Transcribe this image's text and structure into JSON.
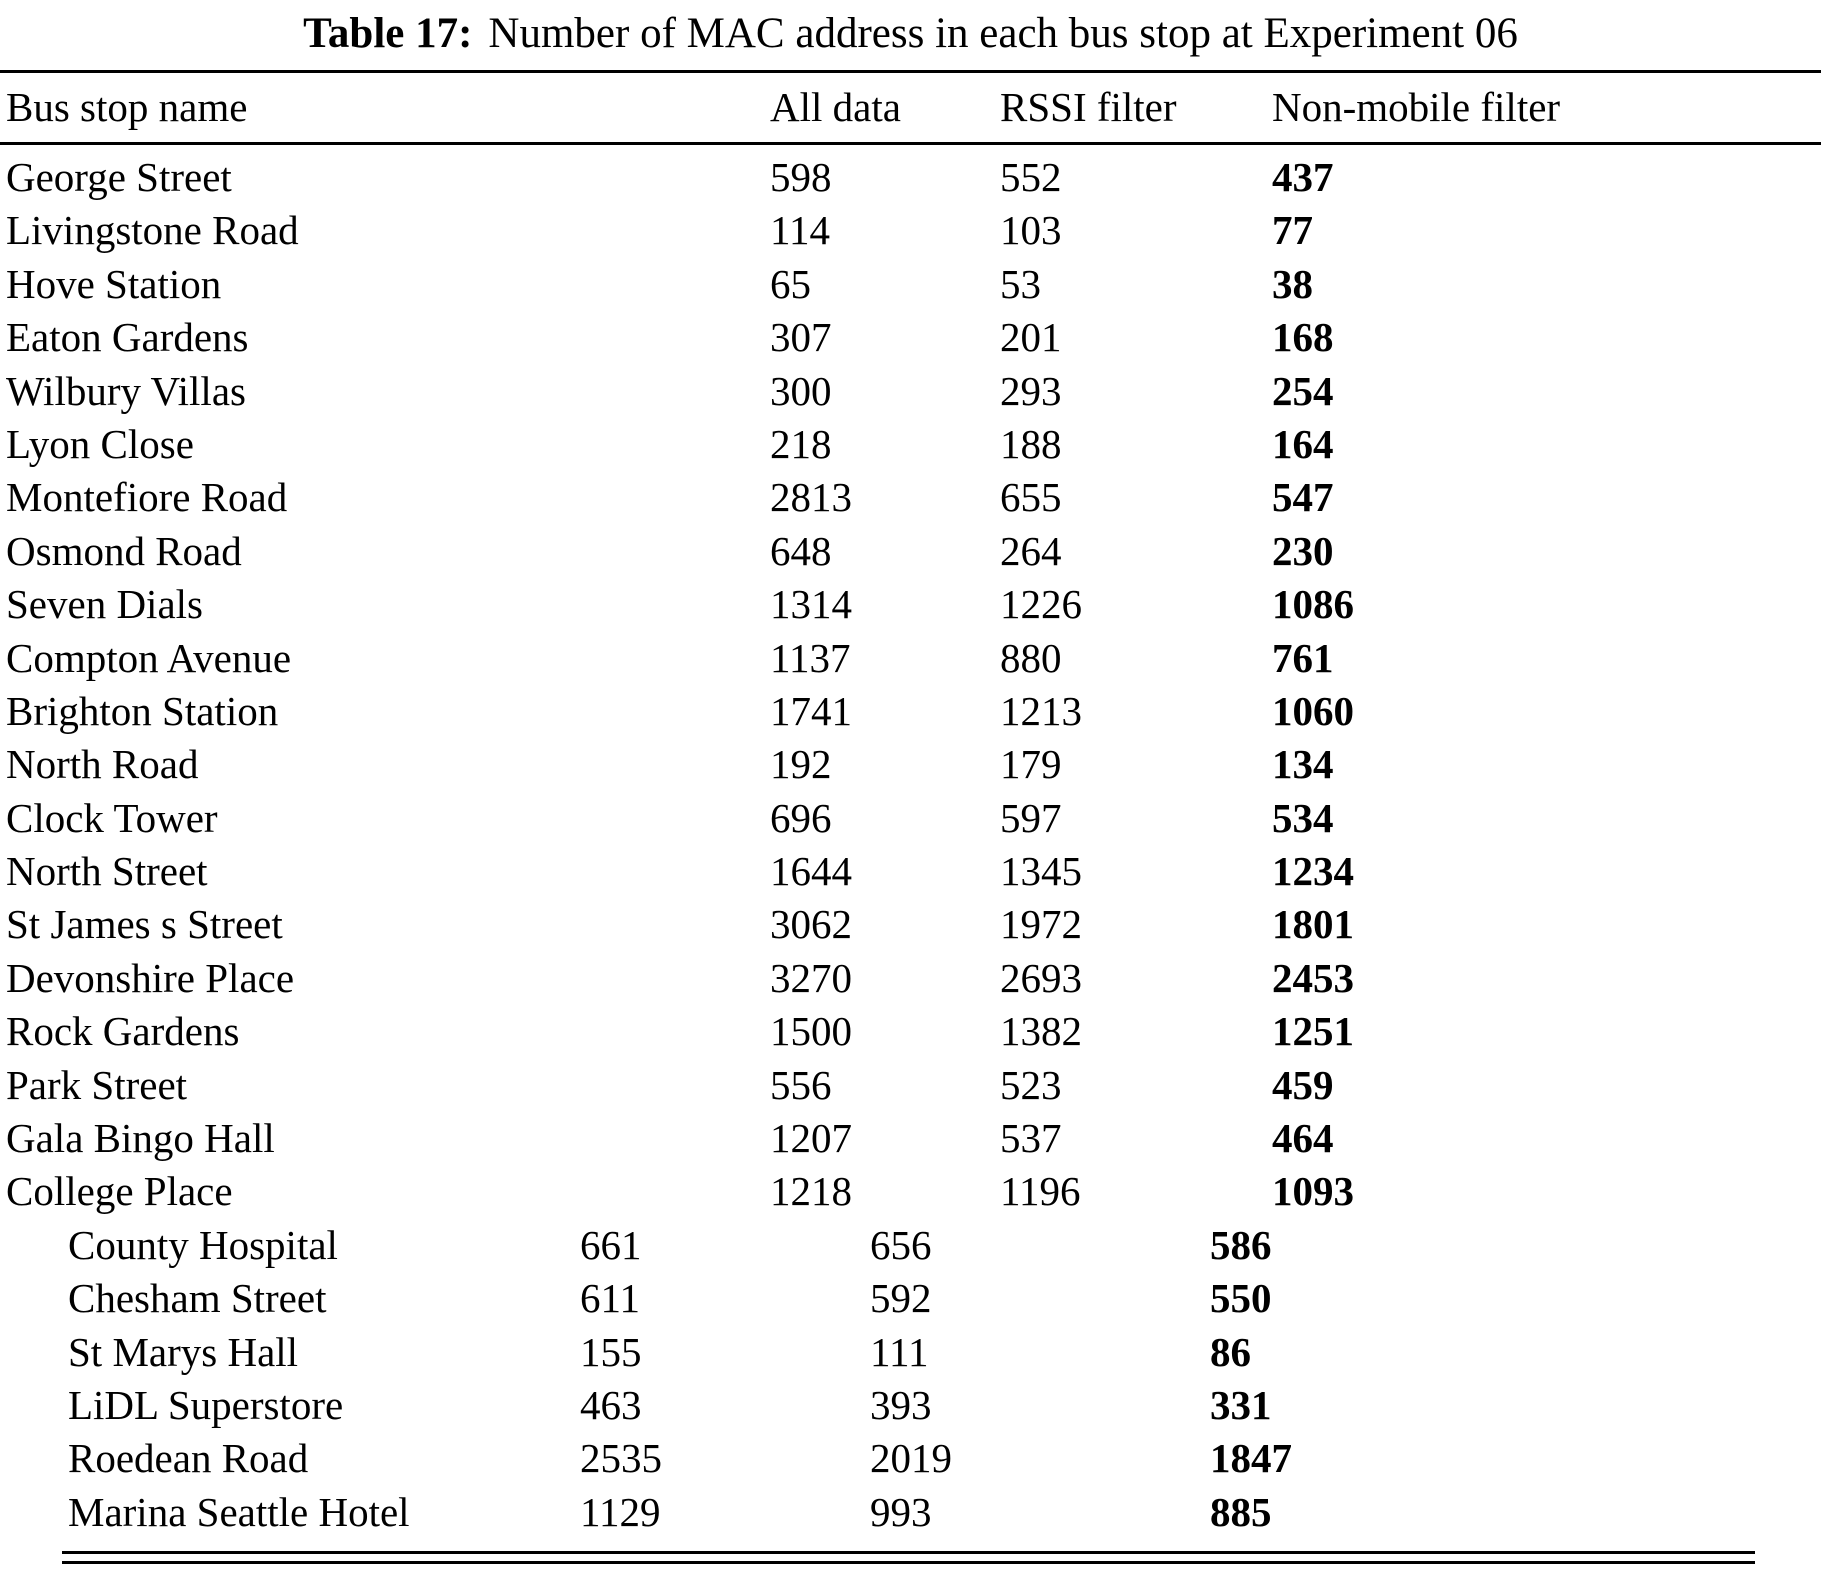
{
  "caption": {
    "label": "Table 17:",
    "text": "Number of MAC address in each bus stop at Experiment 06"
  },
  "table": {
    "headers": [
      "Bus stop name",
      "All data",
      "RSSI filter",
      "Non-mobile filter"
    ],
    "rows": [
      {
        "name": "George Street",
        "all_data": "598",
        "rssi_filter": "552",
        "non_mobile_filter": "437"
      },
      {
        "name": "Livingstone Road",
        "all_data": "114",
        "rssi_filter": "103",
        "non_mobile_filter": "77"
      },
      {
        "name": "Hove Station",
        "all_data": "65",
        "rssi_filter": "53",
        "non_mobile_filter": "38"
      },
      {
        "name": "Eaton Gardens",
        "all_data": "307",
        "rssi_filter": "201",
        "non_mobile_filter": "168"
      },
      {
        "name": "Wilbury Villas",
        "all_data": "300",
        "rssi_filter": "293",
        "non_mobile_filter": "254"
      },
      {
        "name": "Lyon Close",
        "all_data": "218",
        "rssi_filter": "188",
        "non_mobile_filter": "164"
      },
      {
        "name": "Montefiore Road",
        "all_data": "2813",
        "rssi_filter": "655",
        "non_mobile_filter": "547"
      },
      {
        "name": "Osmond Road",
        "all_data": "648",
        "rssi_filter": "264",
        "non_mobile_filter": "230"
      },
      {
        "name": "Seven Dials",
        "all_data": "1314",
        "rssi_filter": "1226",
        "non_mobile_filter": "1086"
      },
      {
        "name": "Compton Avenue",
        "all_data": "1137",
        "rssi_filter": "880",
        "non_mobile_filter": "761"
      },
      {
        "name": "Brighton Station",
        "all_data": "1741",
        "rssi_filter": "1213",
        "non_mobile_filter": "1060"
      },
      {
        "name": "North Road",
        "all_data": "192",
        "rssi_filter": "179",
        "non_mobile_filter": "134"
      },
      {
        "name": "Clock Tower",
        "all_data": "696",
        "rssi_filter": "597",
        "non_mobile_filter": "534"
      },
      {
        "name": "North Street",
        "all_data": "1644",
        "rssi_filter": "1345",
        "non_mobile_filter": "1234"
      },
      {
        "name": "St James s Street",
        "all_data": "3062",
        "rssi_filter": "1972",
        "non_mobile_filter": "1801"
      },
      {
        "name": "Devonshire Place",
        "all_data": "3270",
        "rssi_filter": "2693",
        "non_mobile_filter": "2453"
      },
      {
        "name": "Rock Gardens",
        "all_data": "1500",
        "rssi_filter": "1382",
        "non_mobile_filter": "1251"
      },
      {
        "name": "Park Street",
        "all_data": "556",
        "rssi_filter": "523",
        "non_mobile_filter": "459"
      },
      {
        "name": "Gala Bingo Hall",
        "all_data": "1207",
        "rssi_filter": "537",
        "non_mobile_filter": "464"
      },
      {
        "name": "College Place",
        "all_data": "1218",
        "rssi_filter": "1196",
        "non_mobile_filter": "1093"
      }
    ],
    "indented_rows": [
      {
        "name": "County Hospital",
        "all_data": "661",
        "rssi_filter": "656",
        "non_mobile_filter": "586"
      },
      {
        "name": "Chesham Street",
        "all_data": "611",
        "rssi_filter": "592",
        "non_mobile_filter": "550"
      },
      {
        "name": "St Marys Hall",
        "all_data": "155",
        "rssi_filter": "111",
        "non_mobile_filter": "86"
      },
      {
        "name": "LiDL Superstore",
        "all_data": "463",
        "rssi_filter": "393",
        "non_mobile_filter": "331"
      },
      {
        "name": "Roedean Road",
        "all_data": "2535",
        "rssi_filter": "2019",
        "non_mobile_filter": "1847"
      },
      {
        "name": "Marina Seattle Hotel",
        "all_data": "1129",
        "rssi_filter": "993",
        "non_mobile_filter": "885"
      }
    ]
  },
  "colors": {
    "text": "#000000",
    "background": "#ffffff"
  }
}
